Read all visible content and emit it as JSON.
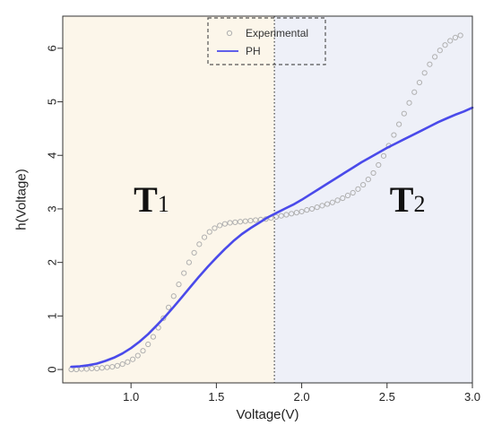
{
  "chart_data": {
    "type": "scatter",
    "xlabel": "Voltage(V)",
    "ylabel": "h(Voltage)",
    "xlim": [
      0.6,
      3.0
    ],
    "ylim": [
      -0.25,
      6.6
    ],
    "x_ticks": [
      "1.0",
      "1.5",
      "2.0",
      "2.5",
      "3.0"
    ],
    "x_tick_values": [
      1.0,
      1.5,
      2.0,
      2.5,
      3.0
    ],
    "y_ticks": [
      "0",
      "1",
      "2",
      "3",
      "4",
      "5",
      "6"
    ],
    "y_tick_values": [
      0,
      1,
      2,
      3,
      4,
      5,
      6
    ],
    "grid": false,
    "legend_position": "top-center",
    "divider_x": 1.84,
    "regions": [
      {
        "label_main": "T",
        "label_sub": "1",
        "x_from": 0.6,
        "x_to": 1.84,
        "color": "#fcf6ea",
        "label_x": 1.12,
        "label_y": 2.95
      },
      {
        "label_main": "T",
        "label_sub": "2",
        "x_from": 1.84,
        "x_to": 3.0,
        "color": "#eef0f8",
        "label_x": 2.62,
        "label_y": 2.95
      }
    ],
    "series": [
      {
        "name": "Experimental",
        "kind": "points",
        "color": "#b0b0b0",
        "x": [
          0.65,
          0.68,
          0.71,
          0.74,
          0.77,
          0.8,
          0.83,
          0.86,
          0.89,
          0.92,
          0.95,
          0.98,
          1.01,
          1.04,
          1.07,
          1.1,
          1.13,
          1.16,
          1.19,
          1.22,
          1.25,
          1.28,
          1.31,
          1.34,
          1.37,
          1.4,
          1.43,
          1.46,
          1.49,
          1.52,
          1.55,
          1.58,
          1.61,
          1.64,
          1.67,
          1.7,
          1.73,
          1.76,
          1.79,
          1.82,
          1.85,
          1.88,
          1.91,
          1.94,
          1.97,
          2.0,
          2.03,
          2.06,
          2.09,
          2.12,
          2.15,
          2.18,
          2.21,
          2.24,
          2.27,
          2.3,
          2.33,
          2.36,
          2.39,
          2.42,
          2.45,
          2.48,
          2.51,
          2.54,
          2.57,
          2.6,
          2.63,
          2.66,
          2.69,
          2.72,
          2.75,
          2.78,
          2.81,
          2.84,
          2.87,
          2.9,
          2.93
        ],
        "y": [
          0.0,
          0.0,
          0.01,
          0.01,
          0.02,
          0.02,
          0.03,
          0.04,
          0.05,
          0.07,
          0.1,
          0.14,
          0.19,
          0.26,
          0.35,
          0.47,
          0.61,
          0.78,
          0.96,
          1.16,
          1.37,
          1.59,
          1.8,
          2.0,
          2.18,
          2.34,
          2.47,
          2.57,
          2.64,
          2.69,
          2.72,
          2.74,
          2.75,
          2.76,
          2.77,
          2.78,
          2.79,
          2.8,
          2.81,
          2.83,
          2.85,
          2.87,
          2.89,
          2.91,
          2.93,
          2.95,
          2.98,
          3.0,
          3.03,
          3.06,
          3.09,
          3.12,
          3.16,
          3.2,
          3.25,
          3.3,
          3.37,
          3.45,
          3.55,
          3.67,
          3.82,
          3.99,
          4.18,
          4.38,
          4.58,
          4.78,
          4.98,
          5.18,
          5.36,
          5.54,
          5.7,
          5.84,
          5.96,
          6.06,
          6.14,
          6.2,
          6.24
        ]
      },
      {
        "name": "PH",
        "kind": "line",
        "color": "#4a4aea",
        "x": [
          0.65,
          0.7,
          0.75,
          0.8,
          0.85,
          0.9,
          0.95,
          1.0,
          1.05,
          1.1,
          1.15,
          1.2,
          1.25,
          1.3,
          1.35,
          1.4,
          1.45,
          1.5,
          1.55,
          1.6,
          1.65,
          1.7,
          1.75,
          1.8,
          1.85,
          1.9,
          1.95,
          2.0,
          2.05,
          2.1,
          2.15,
          2.2,
          2.25,
          2.3,
          2.35,
          2.4,
          2.45,
          2.5,
          2.55,
          2.6,
          2.65,
          2.7,
          2.75,
          2.8,
          2.85,
          2.9,
          2.95,
          3.0
        ],
        "y": [
          0.05,
          0.06,
          0.08,
          0.11,
          0.16,
          0.22,
          0.3,
          0.4,
          0.52,
          0.66,
          0.82,
          0.99,
          1.17,
          1.36,
          1.55,
          1.74,
          1.92,
          2.09,
          2.25,
          2.4,
          2.53,
          2.64,
          2.74,
          2.84,
          2.92,
          3.0,
          3.08,
          3.17,
          3.27,
          3.37,
          3.47,
          3.57,
          3.67,
          3.77,
          3.87,
          3.96,
          4.05,
          4.14,
          4.22,
          4.3,
          4.38,
          4.46,
          4.54,
          4.62,
          4.69,
          4.76,
          4.82,
          4.89
        ]
      }
    ]
  }
}
